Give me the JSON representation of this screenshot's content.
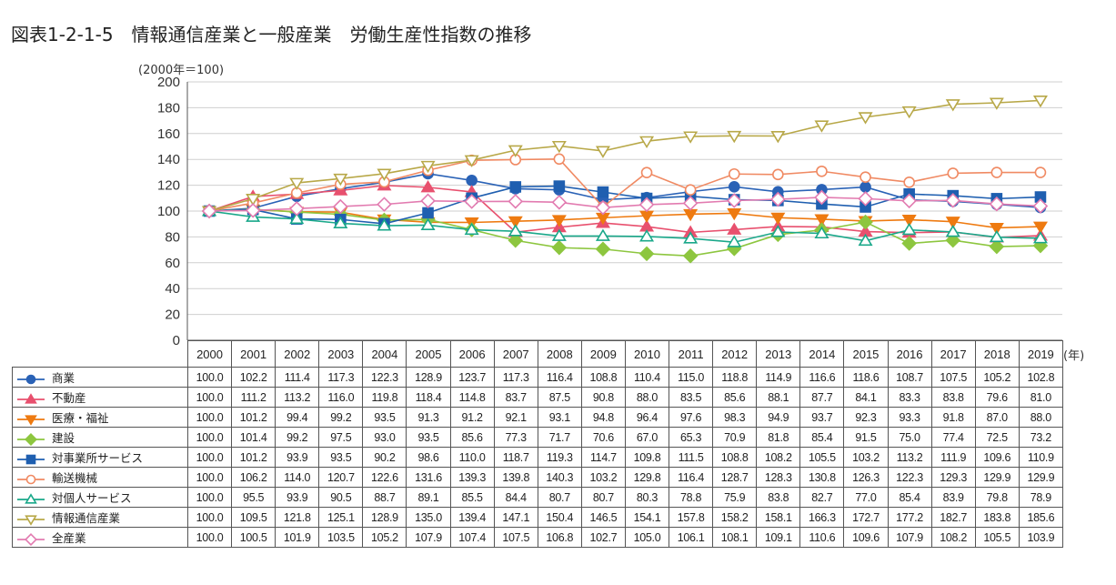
{
  "title": "図表1-2-1-5　情報通信産業と一般産業　労働生産性指数の推移",
  "unit_label": "(2000年＝100)",
  "year_suffix": "(年)",
  "chart_data": {
    "type": "line",
    "ylim": [
      0,
      200
    ],
    "yticks": [
      0,
      20,
      40,
      60,
      80,
      100,
      120,
      140,
      160,
      180,
      200
    ],
    "grid": true,
    "legend": "table-left",
    "x": [
      "2000",
      "2001",
      "2002",
      "2003",
      "2004",
      "2005",
      "2006",
      "2007",
      "2008",
      "2009",
      "2010",
      "2011",
      "2012",
      "2013",
      "2014",
      "2015",
      "2016",
      "2017",
      "2018",
      "2019"
    ],
    "series": [
      {
        "name": "商業",
        "color": "#2a62b6",
        "marker": "circle",
        "filled": true,
        "values": [
          "100.0",
          "102.2",
          "111.4",
          "117.3",
          "122.3",
          "128.9",
          "123.7",
          "117.3",
          "116.4",
          "108.8",
          "110.4",
          "115.0",
          "118.8",
          "114.9",
          "116.6",
          "118.6",
          "108.7",
          "107.5",
          "105.2",
          "102.8"
        ]
      },
      {
        "name": "不動産",
        "color": "#e8506e",
        "marker": "triangle",
        "filled": true,
        "values": [
          "100.0",
          "111.2",
          "113.2",
          "116.0",
          "119.8",
          "118.4",
          "114.8",
          "83.7",
          "87.5",
          "90.8",
          "88.0",
          "83.5",
          "85.6",
          "88.1",
          "87.7",
          "84.1",
          "83.3",
          "83.8",
          "79.6",
          "81.0"
        ]
      },
      {
        "name": "医療・福祉",
        "color": "#ee7a10",
        "marker": "triangle-down",
        "filled": true,
        "values": [
          "100.0",
          "101.2",
          "99.4",
          "99.2",
          "93.5",
          "91.3",
          "91.2",
          "92.1",
          "93.1",
          "94.8",
          "96.4",
          "97.6",
          "98.3",
          "94.9",
          "93.7",
          "92.3",
          "93.3",
          "91.8",
          "87.0",
          "88.0"
        ]
      },
      {
        "name": "建設",
        "color": "#8dc63f",
        "marker": "diamond",
        "filled": true,
        "values": [
          "100.0",
          "101.4",
          "99.2",
          "97.5",
          "93.0",
          "93.5",
          "85.6",
          "77.3",
          "71.7",
          "70.6",
          "67.0",
          "65.3",
          "70.9",
          "81.8",
          "85.4",
          "91.5",
          "75.0",
          "77.4",
          "72.5",
          "73.2"
        ]
      },
      {
        "name": "対事業所サービス",
        "color": "#1f5fb0",
        "marker": "square",
        "filled": true,
        "values": [
          "100.0",
          "101.2",
          "93.9",
          "93.5",
          "90.2",
          "98.6",
          "110.0",
          "118.7",
          "119.3",
          "114.7",
          "109.8",
          "111.5",
          "108.8",
          "108.2",
          "105.5",
          "103.2",
          "113.2",
          "111.9",
          "109.6",
          "110.9"
        ]
      },
      {
        "name": "輸送機械",
        "color": "#f08a63",
        "marker": "circle",
        "filled": false,
        "values": [
          "100.0",
          "106.2",
          "114.0",
          "120.7",
          "122.6",
          "131.6",
          "139.3",
          "139.8",
          "140.3",
          "103.2",
          "129.8",
          "116.4",
          "128.7",
          "128.3",
          "130.8",
          "126.3",
          "122.3",
          "129.3",
          "129.9",
          "129.9"
        ]
      },
      {
        "name": "対個人サービス",
        "color": "#1aa88a",
        "marker": "triangle",
        "filled": false,
        "values": [
          "100.0",
          "95.5",
          "93.9",
          "90.5",
          "88.7",
          "89.1",
          "85.5",
          "84.4",
          "80.7",
          "80.7",
          "80.3",
          "78.8",
          "75.9",
          "83.8",
          "82.7",
          "77.0",
          "85.4",
          "83.9",
          "79.8",
          "78.9"
        ]
      },
      {
        "name": "情報通信産業",
        "color": "#b8a848",
        "marker": "triangle-down",
        "filled": false,
        "values": [
          "100.0",
          "109.5",
          "121.8",
          "125.1",
          "128.9",
          "135.0",
          "139.4",
          "147.1",
          "150.4",
          "146.5",
          "154.1",
          "157.8",
          "158.2",
          "158.1",
          "166.3",
          "172.7",
          "177.2",
          "182.7",
          "183.8",
          "185.6"
        ]
      },
      {
        "name": "全産業",
        "color": "#e27bb0",
        "marker": "diamond",
        "filled": false,
        "values": [
          "100.0",
          "100.5",
          "101.9",
          "103.5",
          "105.2",
          "107.9",
          "107.4",
          "107.5",
          "106.8",
          "102.7",
          "105.0",
          "106.1",
          "108.1",
          "109.1",
          "110.6",
          "109.6",
          "107.9",
          "108.2",
          "105.5",
          "103.9"
        ]
      }
    ]
  }
}
